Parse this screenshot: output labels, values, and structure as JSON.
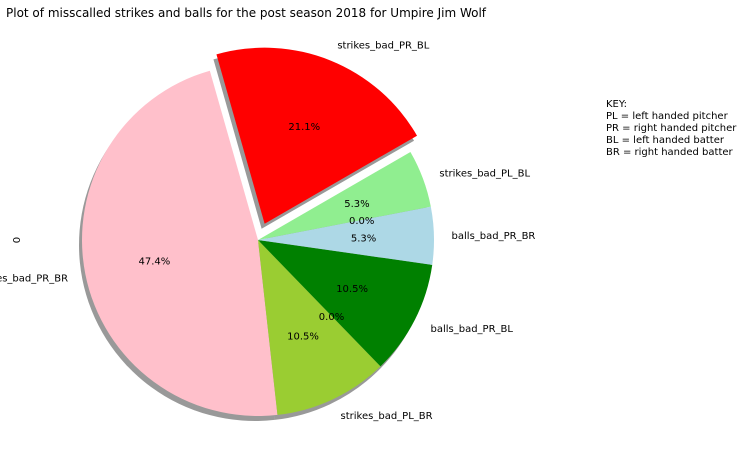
{
  "chart_data": {
    "type": "pie",
    "title": "Plot of misscalled strikes and balls for the post season 2018 for Umpire Jim Wolf",
    "ylabel": "0",
    "slices": [
      {
        "label": "strikes_bad_PR_BL",
        "value": 21.1,
        "pct_label": "21.1%",
        "color": "#ff0000",
        "explode": true
      },
      {
        "label": "strikes_bad_PR_BR",
        "value": 47.4,
        "pct_label": "47.4%",
        "color": "#ffc0cb",
        "explode": false
      },
      {
        "label": "strikes_bad_PL_BR",
        "value": 10.5,
        "pct_label": "10.5%",
        "color": "#9acd32",
        "explode": false
      },
      {
        "label": "",
        "value": 0.0,
        "pct_label": "0.0%",
        "color": "#ff7f0e",
        "explode": false
      },
      {
        "label": "balls_bad_PR_BL",
        "value": 10.5,
        "pct_label": "10.5%",
        "color": "#008000",
        "explode": false
      },
      {
        "label": "balls_bad_PR_BR",
        "value": 5.3,
        "pct_label": "5.3%",
        "color": "#add8e6",
        "explode": false
      },
      {
        "label": "",
        "value": 0.0,
        "pct_label": "0.0%",
        "color": "#1f77b4",
        "explode": false
      },
      {
        "label": "strikes_bad_PL_BL",
        "value": 5.3,
        "pct_label": "5.3%",
        "color": "#90ee90",
        "explode": false
      }
    ],
    "key": {
      "heading": "KEY:",
      "lines": [
        "PL = left handed pitcher",
        "PR = right handed pitcher",
        "BL = left handed batter",
        "BR = right handed batter"
      ]
    }
  }
}
